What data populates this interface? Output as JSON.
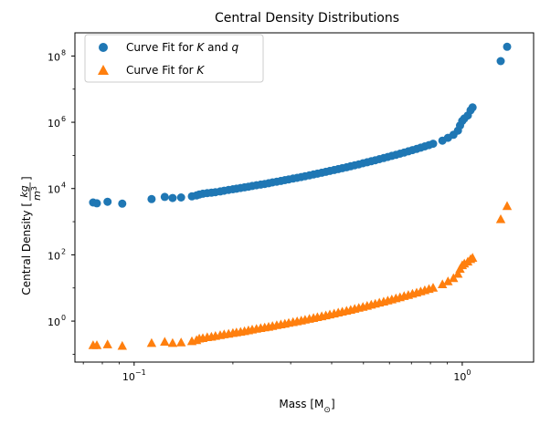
{
  "chart_data": {
    "type": "scatter",
    "title": "Central Density Distributions",
    "xlabel": "Mass [M",
    "xlabel_sub": "⊙",
    "xlabel_end": "]",
    "ylabel": "Central Density [",
    "ylabel_num": "kg",
    "ylabel_den": "m",
    "ylabel_den_sup": "3",
    "ylabel_end": "]",
    "x_scale": "log",
    "y_scale": "log",
    "xlim": [
      0.066,
      1.65
    ],
    "ylim": [
      0.058,
      500000000
    ],
    "grid": false,
    "legend_position": "top-left",
    "x_ticks": [
      {
        "value": 0.1,
        "base": "10",
        "exp": "−1"
      },
      {
        "value": 1,
        "base": "10",
        "exp": "0"
      }
    ],
    "y_ticks": [
      {
        "value": 1,
        "base": "10",
        "exp": "0"
      },
      {
        "value": 100,
        "base": "10",
        "exp": "2"
      },
      {
        "value": 10000,
        "base": "10",
        "exp": "4"
      },
      {
        "value": 1000000,
        "base": "10",
        "exp": "6"
      },
      {
        "value": 100000000,
        "base": "10",
        "exp": "8"
      }
    ],
    "series": [
      {
        "name": "Curve Fit for K and q",
        "legend_text": "Curve Fit for ",
        "legend_k": "K",
        "legend_and": " and ",
        "legend_q": "q",
        "marker": "circle",
        "color": "#1f77b4",
        "points": [
          [
            0.075,
            3800
          ],
          [
            0.077,
            3600
          ],
          [
            0.083,
            4000
          ],
          [
            0.092,
            3500
          ],
          [
            0.113,
            4800
          ],
          [
            0.124,
            5600
          ],
          [
            0.131,
            5200
          ],
          [
            0.139,
            5400
          ],
          [
            0.15,
            5800
          ],
          [
            0.155,
            6200
          ],
          [
            0.158,
            6600
          ],
          [
            0.162,
            7000
          ],
          [
            0.167,
            7300
          ],
          [
            0.172,
            7500
          ],
          [
            0.177,
            7800
          ],
          [
            0.183,
            8200
          ],
          [
            0.188,
            8600
          ],
          [
            0.194,
            9100
          ],
          [
            0.2,
            9500
          ],
          [
            0.205,
            9900
          ],
          [
            0.211,
            10400
          ],
          [
            0.217,
            10900
          ],
          [
            0.223,
            11400
          ],
          [
            0.229,
            12000
          ],
          [
            0.236,
            12600
          ],
          [
            0.243,
            13200
          ],
          [
            0.25,
            13800
          ],
          [
            0.257,
            14500
          ],
          [
            0.264,
            15300
          ],
          [
            0.272,
            16100
          ],
          [
            0.28,
            17000
          ],
          [
            0.288,
            17900
          ],
          [
            0.296,
            18900
          ],
          [
            0.305,
            20000
          ],
          [
            0.314,
            21100
          ],
          [
            0.323,
            22300
          ],
          [
            0.332,
            23600
          ],
          [
            0.342,
            25000
          ],
          [
            0.352,
            26600
          ],
          [
            0.362,
            28200
          ],
          [
            0.373,
            30000
          ],
          [
            0.384,
            31900
          ],
          [
            0.395,
            34000
          ],
          [
            0.407,
            36200
          ],
          [
            0.419,
            38600
          ],
          [
            0.431,
            41200
          ],
          [
            0.444,
            44000
          ],
          [
            0.457,
            47000
          ],
          [
            0.47,
            50300
          ],
          [
            0.484,
            53900
          ],
          [
            0.498,
            57800
          ],
          [
            0.513,
            62000
          ],
          [
            0.528,
            66600
          ],
          [
            0.543,
            71600
          ],
          [
            0.559,
            77000
          ],
          [
            0.576,
            83000
          ],
          [
            0.593,
            89500
          ],
          [
            0.61,
            96600
          ],
          [
            0.628,
            104000
          ],
          [
            0.646,
            113000
          ],
          [
            0.665,
            122000
          ],
          [
            0.685,
            133000
          ],
          [
            0.705,
            144000
          ],
          [
            0.726,
            157000
          ],
          [
            0.747,
            171000
          ],
          [
            0.769,
            187000
          ],
          [
            0.792,
            205000
          ],
          [
            0.815,
            225000
          ],
          [
            0.87,
            280000
          ],
          [
            0.905,
            340000
          ],
          [
            0.94,
            420000
          ],
          [
            0.97,
            560000
          ],
          [
            0.985,
            800000
          ],
          [
            1.0,
            1100000
          ],
          [
            1.015,
            1300000
          ],
          [
            1.04,
            1600000
          ],
          [
            1.06,
            2300000
          ],
          [
            1.075,
            2800000
          ],
          [
            1.31,
            70000000
          ],
          [
            1.37,
            190000000
          ]
        ]
      },
      {
        "name": "Curve Fit for K",
        "legend_text": "Curve Fit for ",
        "legend_k": "K",
        "marker": "triangle",
        "color": "#ff7f0e",
        "points": [
          [
            0.075,
            0.19
          ],
          [
            0.077,
            0.19
          ],
          [
            0.083,
            0.2
          ],
          [
            0.092,
            0.18
          ],
          [
            0.113,
            0.22
          ],
          [
            0.124,
            0.24
          ],
          [
            0.131,
            0.22
          ],
          [
            0.139,
            0.23
          ],
          [
            0.15,
            0.25
          ],
          [
            0.155,
            0.27
          ],
          [
            0.158,
            0.3
          ],
          [
            0.162,
            0.31
          ],
          [
            0.167,
            0.33
          ],
          [
            0.172,
            0.34
          ],
          [
            0.177,
            0.36
          ],
          [
            0.183,
            0.38
          ],
          [
            0.188,
            0.4
          ],
          [
            0.194,
            0.42
          ],
          [
            0.2,
            0.44
          ],
          [
            0.205,
            0.46
          ],
          [
            0.211,
            0.48
          ],
          [
            0.217,
            0.5
          ],
          [
            0.223,
            0.53
          ],
          [
            0.229,
            0.56
          ],
          [
            0.236,
            0.59
          ],
          [
            0.243,
            0.62
          ],
          [
            0.25,
            0.65
          ],
          [
            0.257,
            0.68
          ],
          [
            0.264,
            0.72
          ],
          [
            0.272,
            0.76
          ],
          [
            0.28,
            0.8
          ],
          [
            0.288,
            0.84
          ],
          [
            0.296,
            0.89
          ],
          [
            0.305,
            0.94
          ],
          [
            0.314,
            0.99
          ],
          [
            0.323,
            1.05
          ],
          [
            0.332,
            1.11
          ],
          [
            0.342,
            1.18
          ],
          [
            0.352,
            1.25
          ],
          [
            0.362,
            1.33
          ],
          [
            0.373,
            1.41
          ],
          [
            0.384,
            1.5
          ],
          [
            0.395,
            1.6
          ],
          [
            0.407,
            1.7
          ],
          [
            0.419,
            1.82
          ],
          [
            0.431,
            1.94
          ],
          [
            0.444,
            2.07
          ],
          [
            0.457,
            2.21
          ],
          [
            0.47,
            2.37
          ],
          [
            0.484,
            2.54
          ],
          [
            0.498,
            2.72
          ],
          [
            0.513,
            2.92
          ],
          [
            0.528,
            3.14
          ],
          [
            0.543,
            3.37
          ],
          [
            0.559,
            3.63
          ],
          [
            0.576,
            3.91
          ],
          [
            0.593,
            4.21
          ],
          [
            0.61,
            4.55
          ],
          [
            0.628,
            4.91
          ],
          [
            0.646,
            5.3
          ],
          [
            0.665,
            5.74
          ],
          [
            0.685,
            6.21
          ],
          [
            0.705,
            6.73
          ],
          [
            0.726,
            7.3
          ],
          [
            0.747,
            7.93
          ],
          [
            0.769,
            8.62
          ],
          [
            0.792,
            9.4
          ],
          [
            0.815,
            10.3
          ],
          [
            0.87,
            13
          ],
          [
            0.905,
            16
          ],
          [
            0.94,
            20
          ],
          [
            0.97,
            27
          ],
          [
            0.985,
            38
          ],
          [
            1.0,
            49
          ],
          [
            1.015,
            55
          ],
          [
            1.04,
            63
          ],
          [
            1.06,
            75
          ],
          [
            1.075,
            82
          ],
          [
            1.31,
            1200
          ],
          [
            1.37,
            3000
          ]
        ]
      }
    ]
  }
}
